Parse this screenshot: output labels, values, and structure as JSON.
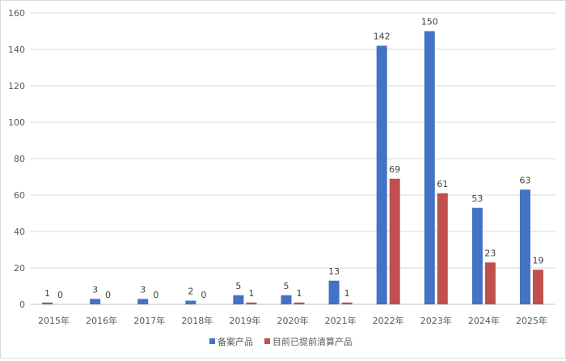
{
  "chart_data": {
    "type": "bar",
    "categories": [
      "2015年",
      "2016年",
      "2017年",
      "2018年",
      "2019年",
      "2020年",
      "2021年",
      "2022年",
      "2023年",
      "2024年",
      "2025年"
    ],
    "series": [
      {
        "name": "备案产品",
        "color": "#4472C4",
        "values": [
          1,
          3,
          3,
          2,
          5,
          5,
          13,
          142,
          150,
          53,
          63
        ]
      },
      {
        "name": "目前已提前清算产品",
        "color": "#C0504D",
        "values": [
          0,
          0,
          0,
          0,
          1,
          1,
          1,
          69,
          61,
          23,
          19
        ]
      }
    ],
    "ylim": [
      0,
      160
    ],
    "yticks": [
      0,
      20,
      40,
      60,
      80,
      100,
      120,
      140,
      160
    ],
    "grid": true,
    "legend": "bottom"
  }
}
